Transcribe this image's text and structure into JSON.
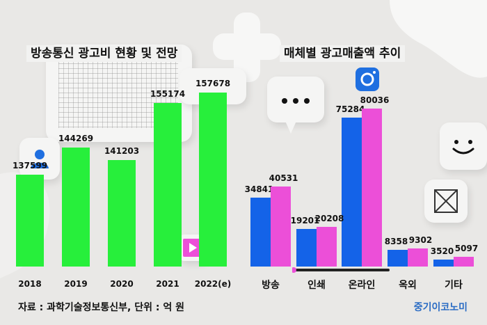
{
  "colors": {
    "green": "#27ef3b",
    "blue": "#1463e8",
    "pink": "#ec4fd8",
    "brand": "#2b6cc4"
  },
  "left": {
    "title": "방송통신 광고비 현황 및 전망"
  },
  "right": {
    "title": "매체별 광고매출액 추이"
  },
  "source": "자료 : 과학기술정보통신부, 단위 : 억 원",
  "brand": "중기이코노미",
  "icons": [
    "user-icon",
    "grid-pattern",
    "speech-bubble-icon",
    "camera-icon",
    "smiley-icon",
    "crossed-box-icon",
    "play-icon",
    "plus-shape"
  ],
  "chart_data": [
    {
      "type": "bar",
      "title": "방송통신 광고비 현황 및 전망",
      "categories": [
        "2018",
        "2019",
        "2020",
        "2021",
        "2022(e)"
      ],
      "values": [
        137599,
        144269,
        141203,
        155174,
        157678
      ]
    },
    {
      "type": "bar",
      "title": "매체별 광고매출액 추이",
      "categories": [
        "방송",
        "인쇄",
        "온라인",
        "옥외",
        "기타"
      ],
      "series": [
        {
          "values": [
            34841,
            19201,
            75284,
            8358,
            3520
          ]
        },
        {
          "values": [
            40531,
            20208,
            80036,
            9302,
            5097
          ]
        }
      ]
    }
  ]
}
